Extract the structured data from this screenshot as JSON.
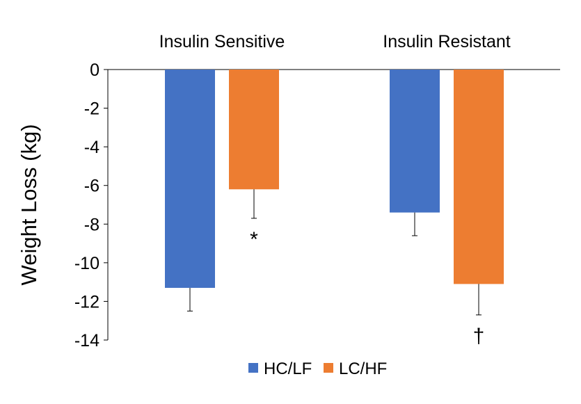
{
  "chart_data": {
    "type": "bar",
    "title": "",
    "xlabel": "",
    "ylabel": "Weight Loss (kg)",
    "ylim": [
      -14,
      0
    ],
    "yticks": [
      0,
      -2,
      -4,
      -6,
      -8,
      -10,
      -12,
      -14
    ],
    "ytick_labels": [
      "0",
      "-2",
      "-4",
      "-6",
      "-8",
      "-10",
      "-12",
      "-14"
    ],
    "categories": [
      "Insulin Sensitive",
      "Insulin Resistant"
    ],
    "category_label_position": "top",
    "series": [
      {
        "name": "HC/LF",
        "color": "#4472C4",
        "values": [
          -11.3,
          -7.4
        ],
        "errors": [
          1.2,
          1.2
        ],
        "annotations": [
          "",
          ""
        ]
      },
      {
        "name": "LC/HF",
        "color": "#ED7D31",
        "values": [
          -6.2,
          -11.1
        ],
        "errors": [
          1.5,
          1.6
        ],
        "annotations": [
          "*",
          "†"
        ]
      }
    ],
    "legend": {
      "position": "bottom",
      "entries": [
        "HC/LF",
        "LC/HF"
      ]
    },
    "grid": false
  }
}
